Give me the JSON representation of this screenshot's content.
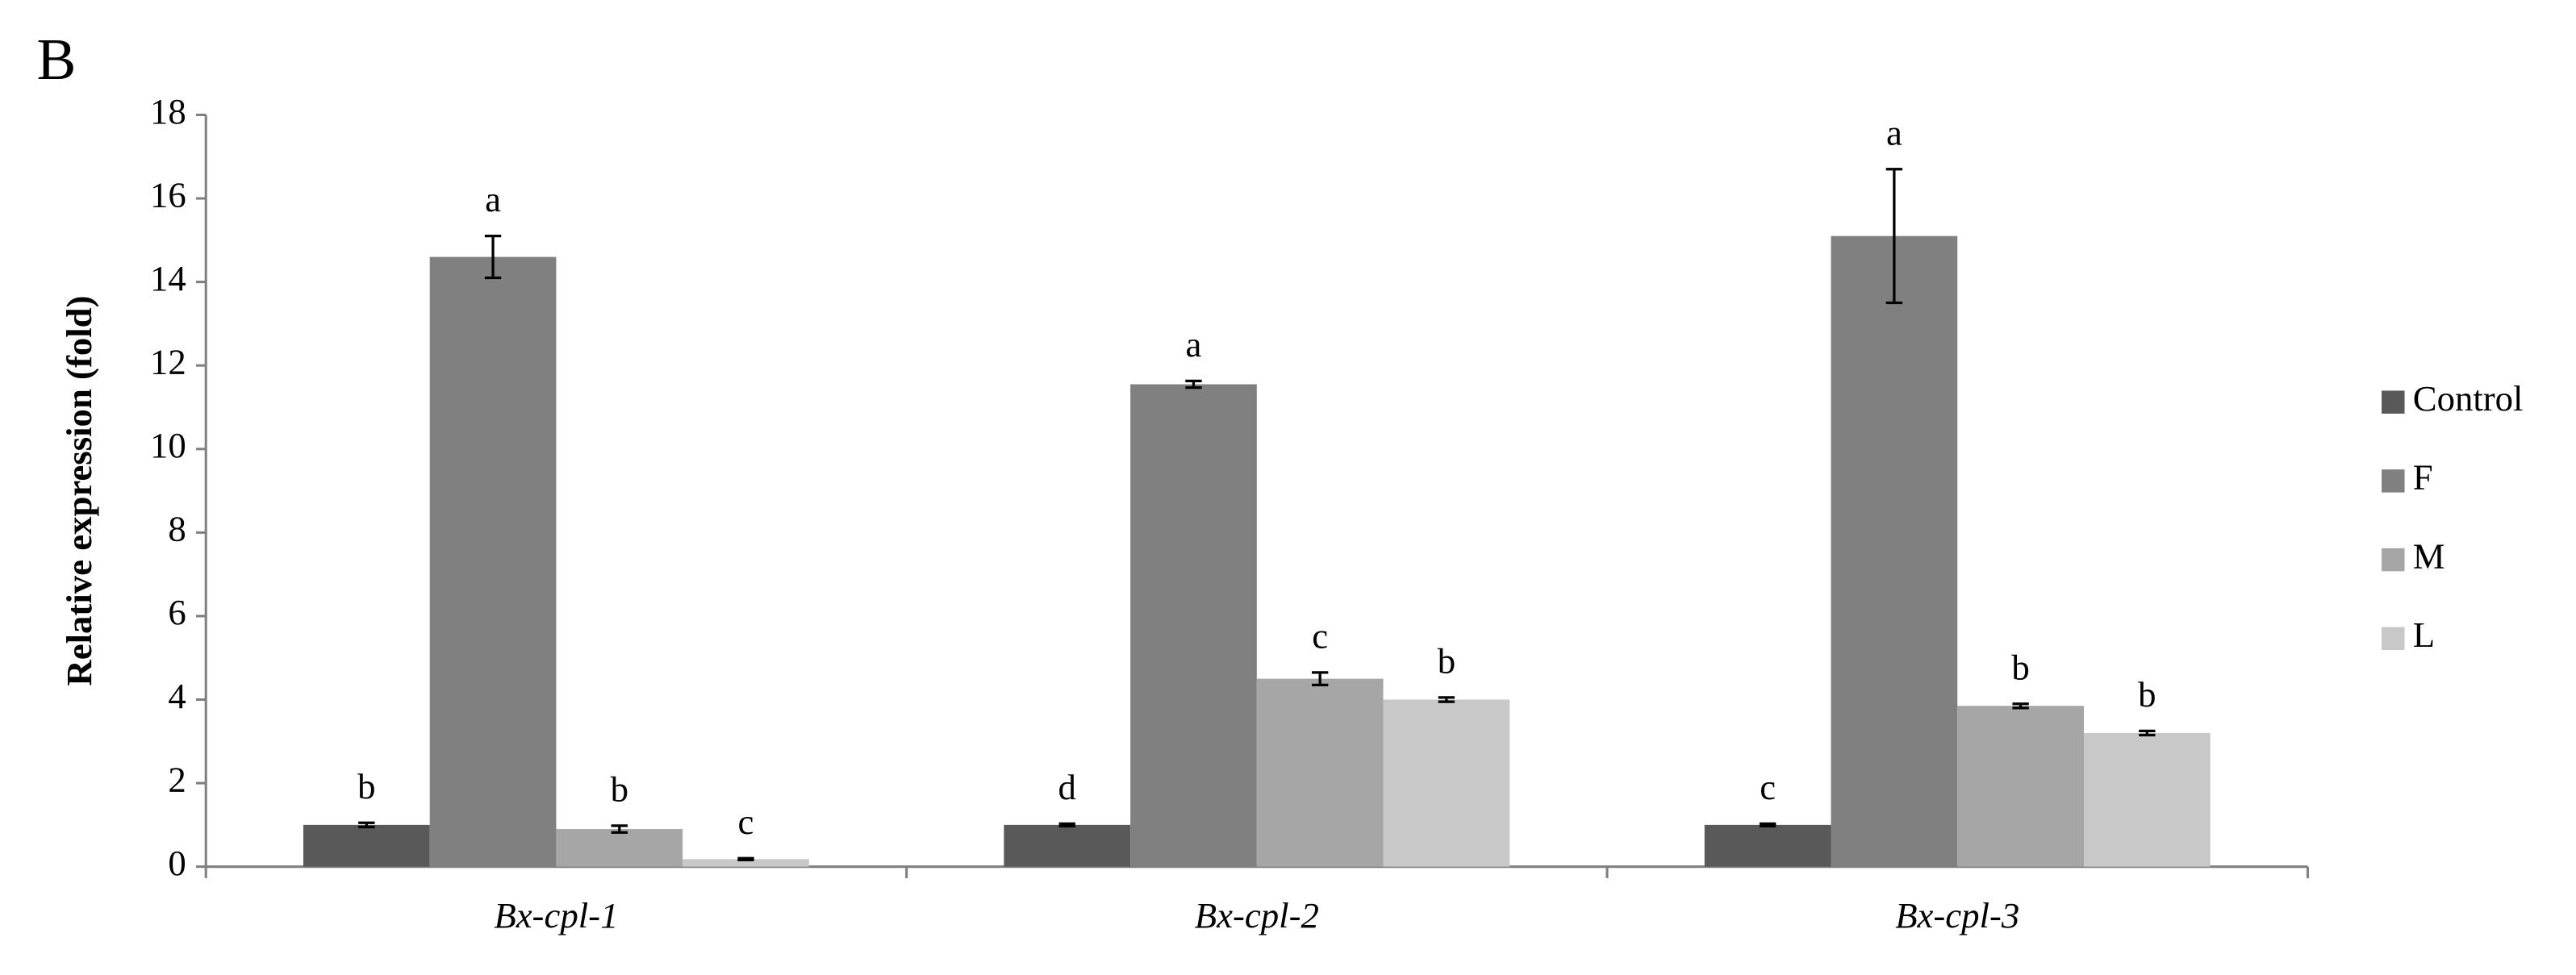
{
  "chart_data": {
    "type": "bar",
    "panel_label": "B",
    "y_label": "Relative expression (fold)",
    "categories": [
      "Bx-cpl-1",
      "Bx-cpl-2",
      "Bx-cpl-3"
    ],
    "series": [
      {
        "name": "Control",
        "color": "#595959",
        "values": [
          1.0,
          1.0,
          1.0
        ],
        "errors": [
          0.05,
          0.03,
          0.03
        ],
        "letters": [
          "b",
          "d",
          "c"
        ]
      },
      {
        "name": "F",
        "color": "#808080",
        "values": [
          14.6,
          11.55,
          15.1
        ],
        "errors": [
          0.5,
          0.08,
          1.6
        ],
        "letters": [
          "a",
          "a",
          "a"
        ]
      },
      {
        "name": "M",
        "color": "#a6a6a6",
        "values": [
          0.9,
          4.5,
          3.85
        ],
        "errors": [
          0.08,
          0.15,
          0.05
        ],
        "letters": [
          "b",
          "c",
          "b"
        ]
      },
      {
        "name": "L",
        "color": "#c8c8c8",
        "values": [
          0.18,
          4.0,
          3.2
        ],
        "errors": [
          0.02,
          0.05,
          0.05
        ],
        "letters": [
          "c",
          "b",
          "b"
        ]
      }
    ],
    "ylim": [
      0,
      18
    ],
    "yticks": [
      0,
      2,
      4,
      6,
      8,
      10,
      12,
      14,
      16,
      18
    ],
    "legend": "right"
  }
}
